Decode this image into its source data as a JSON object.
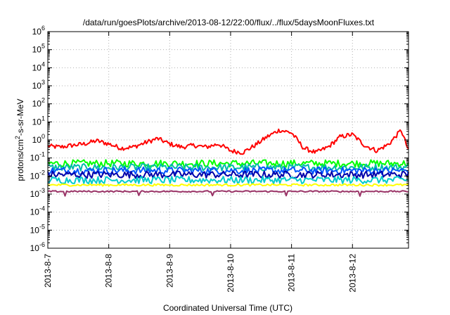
{
  "chart_data": {
    "type": "line",
    "title": "/data/run/goesPlots/archive/2013-08-12/22:00/flux/../flux/5daysMoonFluxes.txt",
    "xlabel": "Coordinated Universal Time (UTC)",
    "ylabel": {
      "base": "protons/cm",
      "sup": "2",
      "rest": "-s-sr-MeV"
    },
    "yscale": "log",
    "ylim_exp": [
      -6,
      6
    ],
    "y_ticks": [
      {
        "b": "10",
        "e": "-6"
      },
      {
        "b": "10",
        "e": "-5"
      },
      {
        "b": "10",
        "e": "-4"
      },
      {
        "b": "10",
        "e": "-3"
      },
      {
        "b": "10",
        "e": "-2"
      },
      {
        "b": "10",
        "e": "-1"
      },
      {
        "b": "10",
        "e": "0"
      },
      {
        "b": "10",
        "e": "1"
      },
      {
        "b": "10",
        "e": "2"
      },
      {
        "b": "10",
        "e": "3"
      },
      {
        "b": "10",
        "e": "4"
      },
      {
        "b": "10",
        "e": "5"
      },
      {
        "b": "10",
        "e": "6"
      }
    ],
    "x_ticks": [
      "2013-8-7",
      "2013-8-8",
      "2013-8-9",
      "2013-8-10",
      "2013-8-11",
      "2013-8-12"
    ],
    "xlim_days": [
      0,
      5.92
    ],
    "grid": true,
    "legend": "none",
    "series": [
      {
        "color": "#ff0000",
        "x": [
          0,
          0.2,
          0.4,
          0.6,
          0.8,
          1.0,
          1.2,
          1.4,
          1.6,
          1.8,
          2.0,
          2.2,
          2.4,
          2.6,
          2.8,
          3.0,
          3.2,
          3.4,
          3.6,
          3.8,
          4.0,
          4.2,
          4.4,
          4.6,
          4.8,
          5.0,
          5.2,
          5.4,
          5.6,
          5.8,
          5.92
        ],
        "y": [
          0.45,
          0.4,
          0.5,
          0.6,
          0.9,
          0.6,
          0.35,
          0.4,
          0.7,
          1.2,
          0.6,
          0.4,
          0.5,
          0.4,
          0.6,
          0.25,
          0.2,
          0.5,
          1.5,
          3.5,
          2.5,
          0.35,
          0.2,
          0.4,
          1.5,
          2.0,
          0.5,
          0.25,
          0.6,
          3.5,
          0.25
        ]
      },
      {
        "color": "#00ff00",
        "y_center": 0.05
      },
      {
        "color": "#00bbaa",
        "y_center": 0.03
      },
      {
        "color": "#0055ff",
        "y_center": 0.02
      },
      {
        "color": "#0000aa",
        "y_center": 0.012
      },
      {
        "color": "#00cccc",
        "y_center": 0.006
      },
      {
        "color": "#ffff00",
        "y_center": 0.0032
      },
      {
        "color": "#993366",
        "y_center": 0.0014
      }
    ]
  }
}
